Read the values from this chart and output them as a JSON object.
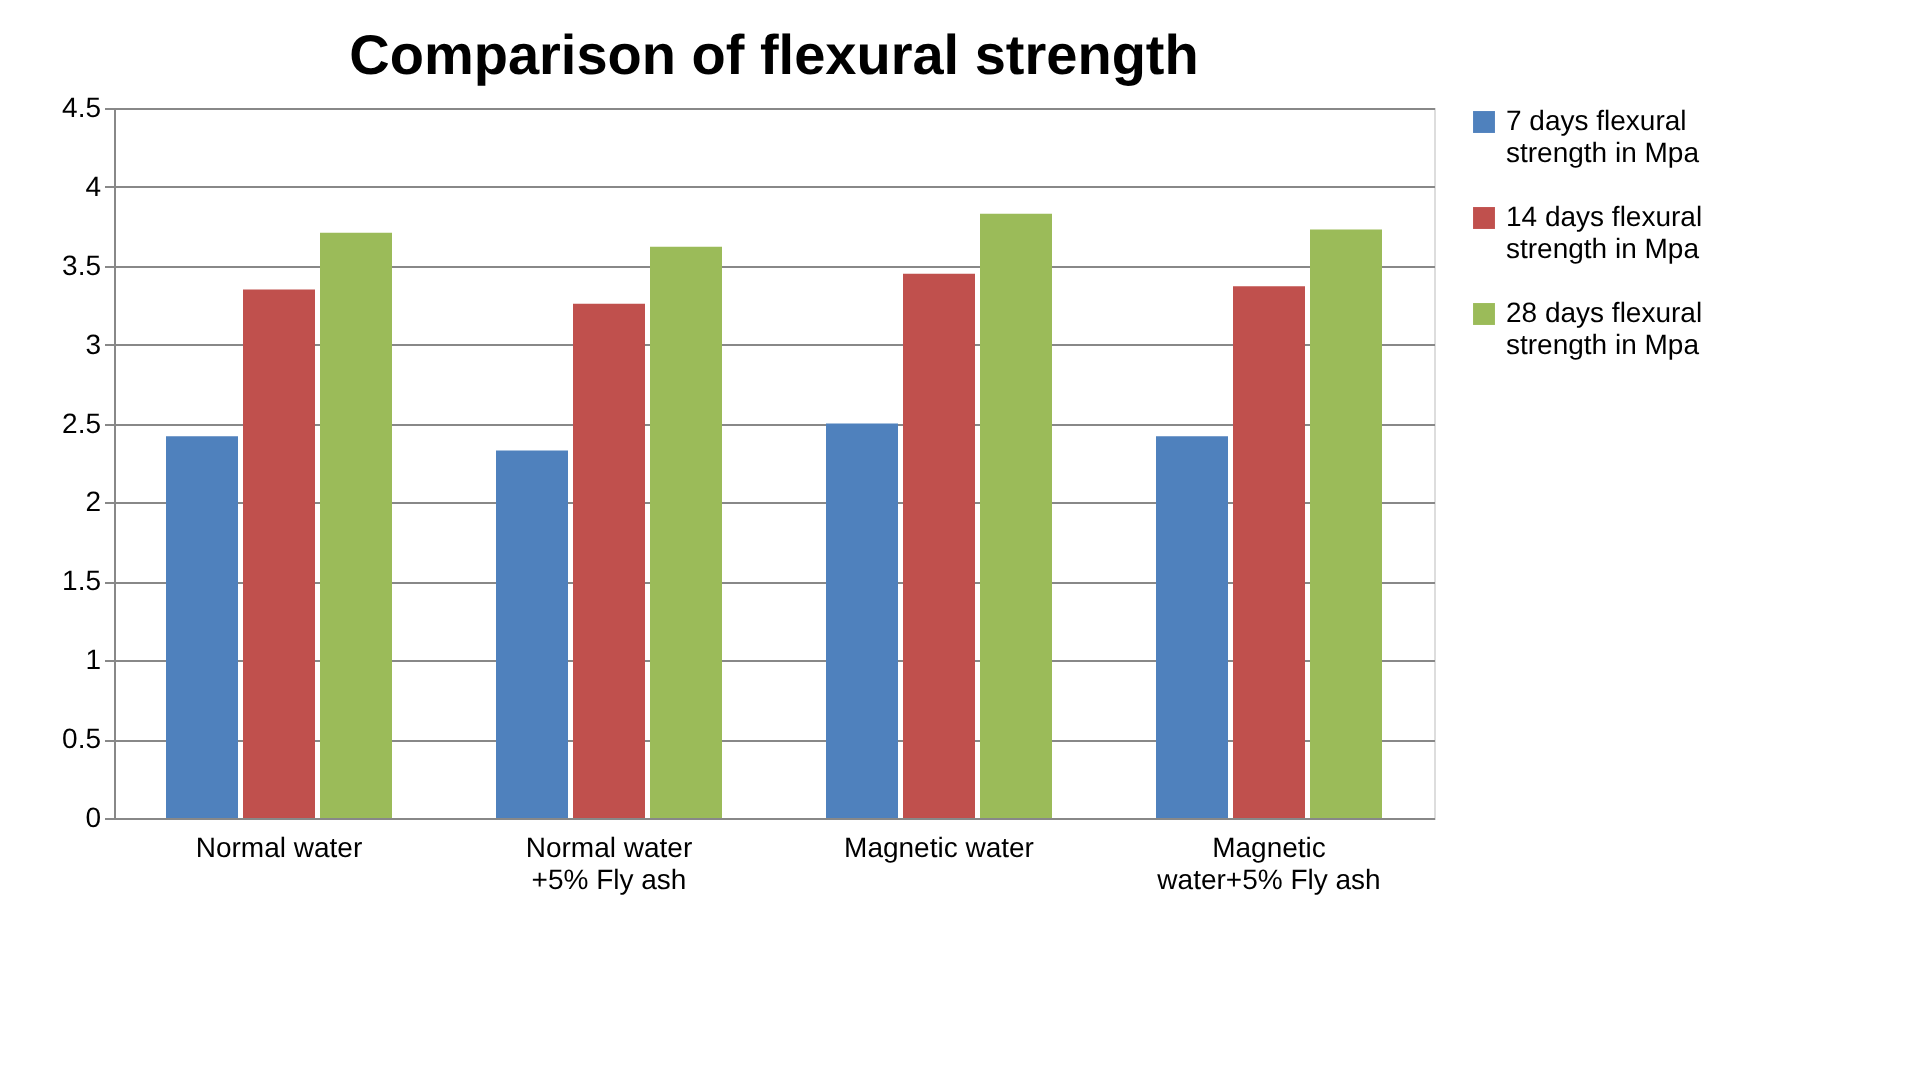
{
  "chart_data": {
    "type": "bar",
    "title": "Comparison of flexural strength",
    "categories": [
      "Normal water",
      "Normal water +5% Fly ash",
      "Magnetic water",
      "Magnetic water+5% Fly ash"
    ],
    "series": [
      {
        "name": "7 days flexural strength in Mpa",
        "color": "#4f81bd",
        "values": [
          2.42,
          2.33,
          2.5,
          2.42
        ]
      },
      {
        "name": "14 days flexural strength in Mpa",
        "color": "#c0504d",
        "values": [
          3.35,
          3.26,
          3.45,
          3.37
        ]
      },
      {
        "name": "28 days flexural strength in Mpa",
        "color": "#9bbb59",
        "values": [
          3.71,
          3.62,
          3.83,
          3.73
        ]
      }
    ],
    "ylim": [
      0,
      4.5
    ],
    "yticks": [
      0,
      0.5,
      1,
      1.5,
      2,
      2.5,
      3,
      3.5,
      4,
      4.5
    ],
    "grid": "y",
    "legend": "right"
  }
}
